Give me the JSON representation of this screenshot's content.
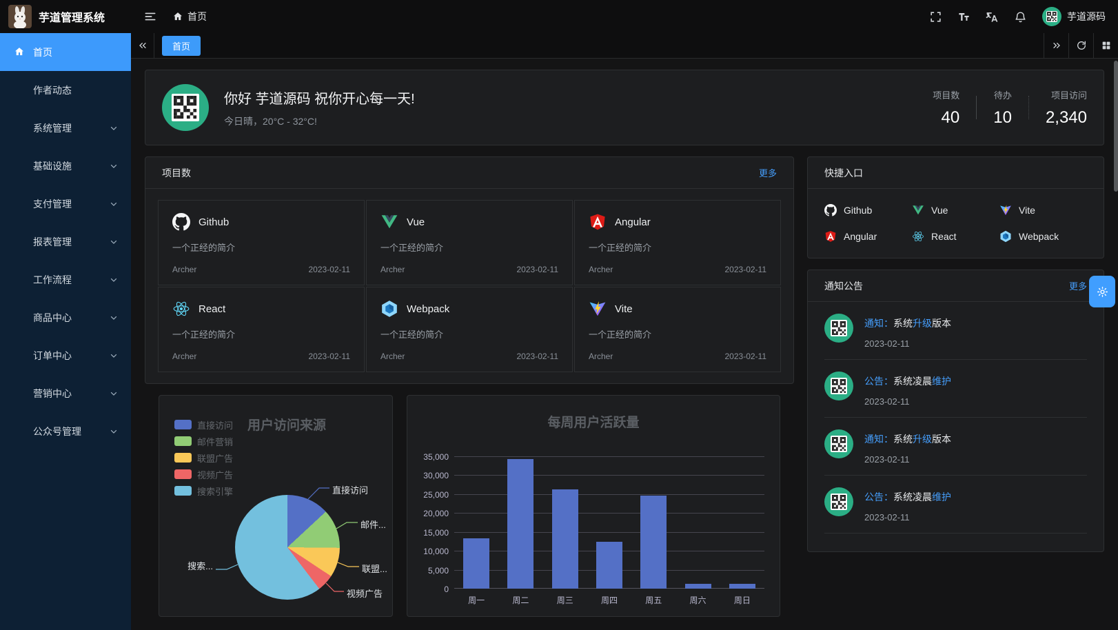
{
  "app": {
    "title": "芋道管理系统",
    "breadcrumb_home": "首页",
    "username": "芋道源码"
  },
  "tabs": {
    "items": [
      {
        "label": "首页",
        "active": true
      }
    ]
  },
  "sidebar": {
    "items": [
      {
        "key": "home",
        "label": "首页",
        "icon": "home",
        "active": true,
        "expandable": false
      },
      {
        "key": "author-news",
        "label": "作者动态",
        "expandable": false
      },
      {
        "key": "system",
        "label": "系统管理",
        "expandable": true
      },
      {
        "key": "infra",
        "label": "基础设施",
        "expandable": true
      },
      {
        "key": "pay",
        "label": "支付管理",
        "expandable": true
      },
      {
        "key": "report",
        "label": "报表管理",
        "expandable": true
      },
      {
        "key": "workflow",
        "label": "工作流程",
        "expandable": true
      },
      {
        "key": "product",
        "label": "商品中心",
        "expandable": true
      },
      {
        "key": "order",
        "label": "订单中心",
        "expandable": true
      },
      {
        "key": "marketing",
        "label": "营销中心",
        "expandable": true
      },
      {
        "key": "mp",
        "label": "公众号管理",
        "expandable": true
      }
    ]
  },
  "welcome": {
    "greeting": "你好 芋道源码 祝你开心每一天!",
    "weather": "今日晴，20°C - 32°C!",
    "stats": [
      {
        "label": "项目数",
        "value": "40"
      },
      {
        "label": "待办",
        "value": "10"
      },
      {
        "label": "项目访问",
        "value": "2,340"
      }
    ]
  },
  "projects": {
    "title": "项目数",
    "more": "更多",
    "cards": [
      {
        "name": "Github",
        "icon": "github",
        "desc": "一个正经的简介",
        "author": "Archer",
        "date": "2023-02-11"
      },
      {
        "name": "Vue",
        "icon": "vue",
        "desc": "一个正经的简介",
        "author": "Archer",
        "date": "2023-02-11"
      },
      {
        "name": "Angular",
        "icon": "angular",
        "desc": "一个正经的简介",
        "author": "Archer",
        "date": "2023-02-11"
      },
      {
        "name": "React",
        "icon": "react",
        "desc": "一个正经的简介",
        "author": "Archer",
        "date": "2023-02-11"
      },
      {
        "name": "Webpack",
        "icon": "webpack",
        "desc": "一个正经的简介",
        "author": "Archer",
        "date": "2023-02-11"
      },
      {
        "name": "Vite",
        "icon": "vite",
        "desc": "一个正经的简介",
        "author": "Archer",
        "date": "2023-02-11"
      }
    ]
  },
  "quicklinks": {
    "title": "快捷入口",
    "items": [
      {
        "name": "Github",
        "icon": "github"
      },
      {
        "name": "Vue",
        "icon": "vue"
      },
      {
        "name": "Vite",
        "icon": "vite"
      },
      {
        "name": "Angular",
        "icon": "angular"
      },
      {
        "name": "React",
        "icon": "react"
      },
      {
        "name": "Webpack",
        "icon": "webpack"
      }
    ]
  },
  "notices": {
    "title": "通知公告",
    "more": "更多",
    "items": [
      {
        "parts": [
          {
            "t": "通知：",
            "link": true
          },
          {
            "t": "系统"
          },
          {
            "t": "升级",
            "link": true
          },
          {
            "t": "版本"
          }
        ],
        "date": "2023-02-11"
      },
      {
        "parts": [
          {
            "t": "公告：",
            "link": true
          },
          {
            "t": "系统凌晨"
          },
          {
            "t": "维护",
            "link": true
          }
        ],
        "date": "2023-02-11"
      },
      {
        "parts": [
          {
            "t": "通知：",
            "link": true
          },
          {
            "t": "系统"
          },
          {
            "t": "升级",
            "link": true
          },
          {
            "t": "版本"
          }
        ],
        "date": "2023-02-11"
      },
      {
        "parts": [
          {
            "t": "公告：",
            "link": true
          },
          {
            "t": "系统凌晨"
          },
          {
            "t": "维护",
            "link": true
          }
        ],
        "date": "2023-02-11"
      }
    ]
  },
  "chart_data": [
    {
      "type": "pie",
      "title": "用户访问来源",
      "legend_position": "left",
      "labels": [
        "直接访问",
        "邮件营销",
        "联盟广告",
        "视频广告",
        "搜索引擎"
      ],
      "values": [
        335,
        310,
        234,
        135,
        1548
      ],
      "callout_labels": [
        "直接访问",
        "邮件...",
        "联盟...",
        "视频广告",
        "搜索..."
      ],
      "colors": [
        "#5470c6",
        "#91cc75",
        "#fac858",
        "#ee6666",
        "#73c0de"
      ]
    },
    {
      "type": "bar",
      "title": "每周用户活跃量",
      "categories": [
        "周一",
        "周二",
        "周三",
        "周四",
        "周五",
        "周六",
        "周日"
      ],
      "values": [
        13253,
        34235,
        26321,
        12340,
        24643,
        1322,
        1324
      ],
      "ylim": [
        0,
        35000
      ],
      "y_ticks": [
        "0",
        "5,000",
        "10,000",
        "15,000",
        "20,000",
        "25,000",
        "30,000",
        "35,000"
      ],
      "bar_color": "#5470c6",
      "grid": true,
      "legend_position": "none"
    }
  ],
  "colors": {
    "accent": "#409eff",
    "sidebar_active": "#3d9afc",
    "avatar_green": "#2bae85"
  }
}
